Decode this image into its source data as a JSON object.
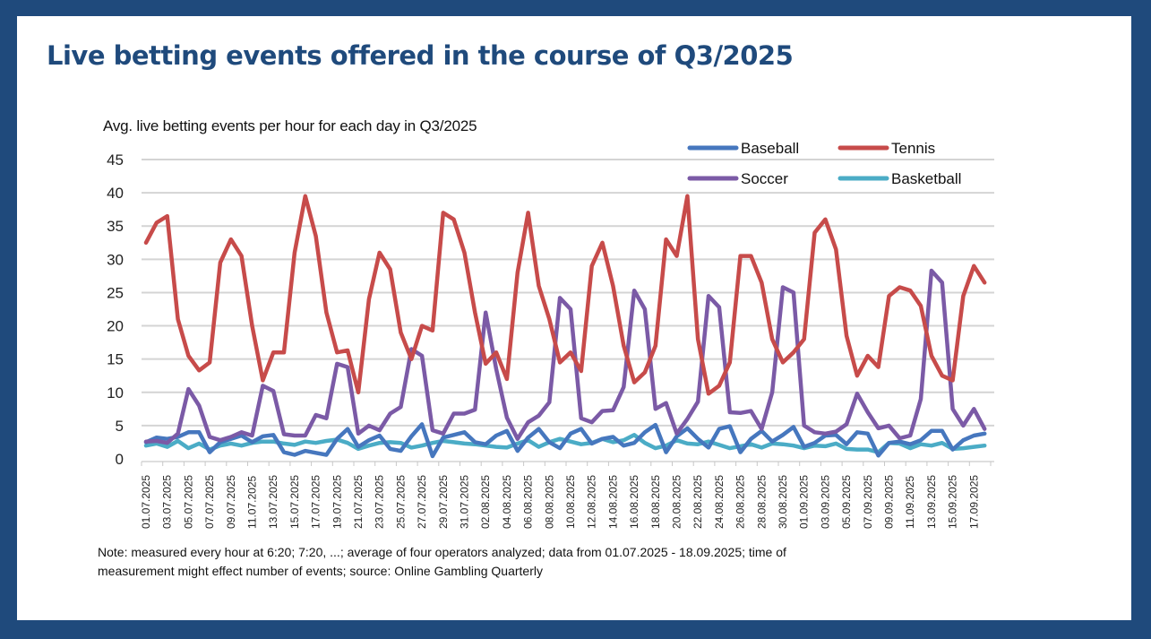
{
  "page": {
    "title": "Live betting events offered in the course of Q3/2025",
    "note_line1": "Note: measured  every  hour at 6:20; 7:20, ...; average  of four operators analyzed;  data from 01.07.2025 - 18.09.2025; time of",
    "note_line2": "measurement  might effect  number of events; source: Online Gambling  Quarterly"
  },
  "chart_data": {
    "type": "line",
    "title": "Avg. live betting events per hour for each day in Q3/2025",
    "xlabel": "",
    "ylabel": "",
    "ylim": [
      0,
      45
    ],
    "yticks": [
      0,
      5,
      10,
      15,
      20,
      25,
      30,
      35,
      40,
      45
    ],
    "grid": true,
    "legend_position": "top-right",
    "x_start": "01.07.2025",
    "x_end": "18.09.2025",
    "xtick_labels": [
      "01.07.2025",
      "03.07.2025",
      "05.07.2025",
      "07.07.2025",
      "09.07.2025",
      "11.07.2025",
      "13.07.2025",
      "15.07.2025",
      "17.07.2025",
      "19.07.2025",
      "21.07.2025",
      "23.07.2025",
      "25.07.2025",
      "27.07.2025",
      "29.07.2025",
      "31.07.2025",
      "02.08.2025",
      "04.08.2025",
      "06.08.2025",
      "08.08.2025",
      "10.08.2025",
      "12.08.2025",
      "14.08.2025",
      "16.08.2025",
      "18.08.2025",
      "20.08.2025",
      "22.08.2025",
      "24.08.2025",
      "26.08.2025",
      "28.08.2025",
      "30.08.2025",
      "01.09.2025",
      "03.09.2025",
      "05.09.2025",
      "07.09.2025",
      "09.09.2025",
      "11.09.2025",
      "13.09.2025",
      "15.09.2025",
      "17.09.2025"
    ],
    "series": [
      {
        "name": "Baseball",
        "color": "#4677be",
        "values": [
          2.5,
          3.2,
          3.0,
          3.3,
          4.0,
          4.0,
          1.0,
          2.5,
          3.0,
          3.5,
          2.5,
          3.4,
          3.6,
          1.0,
          0.6,
          1.2,
          0.9,
          0.6,
          3.0,
          4.5,
          1.8,
          2.8,
          3.5,
          1.5,
          1.2,
          3.4,
          5.2,
          0.4,
          3.2,
          3.6,
          4.0,
          2.5,
          2.2,
          3.5,
          4.2,
          1.2,
          3.2,
          4.5,
          2.5,
          1.6,
          3.8,
          4.5,
          2.3,
          3.0,
          3.3,
          2.0,
          2.4,
          4.0,
          5.1,
          1.0,
          3.4,
          4.6,
          3.0,
          1.7,
          4.5,
          4.9,
          1.0,
          3.0,
          4.2,
          2.6,
          3.6,
          4.8,
          1.8,
          2.4,
          3.5,
          3.6,
          2.2,
          4.0,
          3.8,
          0.5,
          2.4,
          2.6,
          2.2,
          2.8,
          4.2,
          4.2,
          1.4,
          2.8,
          3.5,
          3.8
        ]
      },
      {
        "name": "Tennis",
        "color": "#c74b4a",
        "values": [
          32.5,
          35.5,
          36.5,
          21.0,
          15.5,
          13.3,
          14.5,
          29.5,
          33.0,
          30.5,
          20.0,
          11.8,
          16.0,
          16.0,
          31.0,
          39.5,
          33.5,
          22.0,
          16.0,
          16.3,
          10.0,
          24.0,
          31.0,
          28.5,
          19.0,
          15.0,
          20.0,
          19.3,
          37.0,
          36.0,
          31.0,
          22.0,
          14.3,
          16.0,
          12.0,
          28.0,
          37.0,
          26.0,
          21.0,
          14.5,
          16.0,
          13.2,
          29.0,
          32.5,
          26.0,
          17.0,
          11.5,
          13.0,
          17.0,
          33.0,
          30.5,
          39.5,
          18.0,
          9.8,
          11.0,
          14.5,
          30.5,
          30.5,
          26.5,
          18.0,
          14.5,
          16.0,
          18.0,
          34.0,
          36.0,
          31.5,
          18.5,
          12.5,
          15.5,
          13.8,
          24.5,
          25.8,
          25.3,
          23.0,
          15.5,
          12.5,
          11.8,
          24.5,
          29.0,
          26.5
        ]
      },
      {
        "name": "Soccer",
        "color": "#7b5aa6",
        "values": [
          2.6,
          2.7,
          2.4,
          3.8,
          10.5,
          8.0,
          3.3,
          2.8,
          3.3,
          4.0,
          3.5,
          11.0,
          10.2,
          3.7,
          3.5,
          3.5,
          6.6,
          6.1,
          14.3,
          13.8,
          3.8,
          5.0,
          4.3,
          6.8,
          7.8,
          16.5,
          15.5,
          4.3,
          3.8,
          6.8,
          6.8,
          7.4,
          22.0,
          13.5,
          6.2,
          3.0,
          5.5,
          6.5,
          8.5,
          24.2,
          22.5,
          6.1,
          5.5,
          7.2,
          7.3,
          10.8,
          25.3,
          22.5,
          7.5,
          8.4,
          3.8,
          6.0,
          8.6,
          24.5,
          22.8,
          7.0,
          6.9,
          7.2,
          4.5,
          10.0,
          25.8,
          25.0,
          5.0,
          4.0,
          3.8,
          4.1,
          5.2,
          9.8,
          7.0,
          4.6,
          5.0,
          3.1,
          3.5,
          9.0,
          28.3,
          26.5,
          7.5,
          5.0,
          7.5,
          4.5
        ]
      },
      {
        "name": "Basketball",
        "color": "#4bacc6",
        "values": [
          2.0,
          2.3,
          1.8,
          2.7,
          1.6,
          2.3,
          1.4,
          2.0,
          2.3,
          2.0,
          2.4,
          2.6,
          2.6,
          2.3,
          2.1,
          2.6,
          2.4,
          2.7,
          2.9,
          2.4,
          1.5,
          2.0,
          2.4,
          2.5,
          2.4,
          1.7,
          2.0,
          2.4,
          2.7,
          2.5,
          2.3,
          2.2,
          2.0,
          1.8,
          1.7,
          2.3,
          2.8,
          1.8,
          2.5,
          3.0,
          2.6,
          2.2,
          2.4,
          3.0,
          2.5,
          2.8,
          3.6,
          2.4,
          1.6,
          2.0,
          2.8,
          2.3,
          2.2,
          2.6,
          2.1,
          1.6,
          1.9,
          2.2,
          1.7,
          2.3,
          2.2,
          2.0,
          1.6,
          2.0,
          1.9,
          2.3,
          1.5,
          1.4,
          1.4,
          1.0,
          2.4,
          2.3,
          1.6,
          2.2,
          2.0,
          2.4,
          1.5,
          1.6,
          1.8,
          2.0
        ]
      }
    ]
  }
}
